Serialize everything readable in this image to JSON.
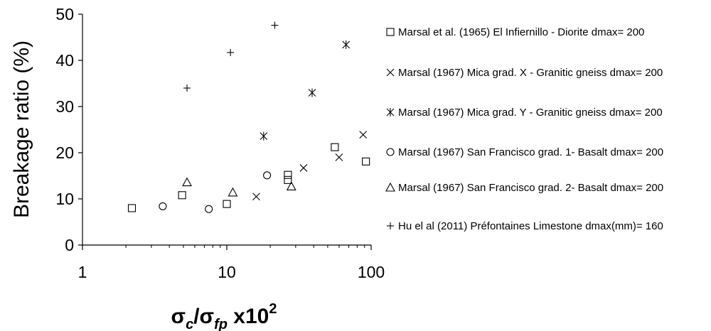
{
  "chart_data": {
    "type": "scatter",
    "x_scale": "log",
    "xlim": [
      1,
      100
    ],
    "ylim": [
      0,
      50
    ],
    "x_ticks": [
      1,
      10,
      100
    ],
    "y_ticks": [
      0,
      10,
      20,
      30,
      40,
      50
    ],
    "ylabel": "Breakage ratio (%)",
    "xlabel": {
      "sigma": "σ",
      "sub1": "c",
      "slash": "/",
      "sub2": "fp",
      "mult": " x10",
      "exp": "2"
    },
    "grid": false,
    "legend_position": "right",
    "series": [
      {
        "name": "Marsal et al. (1965) El Infiernillo - Diorite dmax= 200",
        "marker": "square",
        "points": [
          [
            2.2,
            8.0
          ],
          [
            4.9,
            10.8
          ],
          [
            10.0,
            8.9
          ],
          [
            26.5,
            14.1
          ],
          [
            26.5,
            15.2
          ],
          [
            56.0,
            21.2
          ],
          [
            92.0,
            18.1
          ]
        ]
      },
      {
        "name": "Marsal (1967) Mica grad. X - Granitic gneiss dmax= 200",
        "marker": "x",
        "points": [
          [
            16.0,
            10.5
          ],
          [
            34.0,
            16.7
          ],
          [
            60.0,
            19.0
          ],
          [
            88.0,
            23.9
          ]
        ]
      },
      {
        "name": "Marsal (1967) Mica grad. Y - Granitic gneiss dmax= 200",
        "marker": "asterisk",
        "points": [
          [
            18.0,
            23.6
          ],
          [
            39.0,
            33.0
          ],
          [
            67.0,
            43.4
          ]
        ]
      },
      {
        "name": "Marsal (1967) San Francisco grad. 1- Basalt dmax= 200",
        "marker": "circle",
        "points": [
          [
            3.6,
            8.4
          ],
          [
            7.5,
            7.8
          ],
          [
            19.0,
            15.1
          ]
        ]
      },
      {
        "name": "Marsal (1967) San Francisco grad. 2- Basalt dmax= 200",
        "marker": "triangle",
        "points": [
          [
            5.3,
            13.6
          ],
          [
            11.0,
            11.4
          ],
          [
            28.0,
            12.7
          ]
        ]
      },
      {
        "name": "Hu el al (2011)  Préfontaines Limestone dmax(mm)= 160",
        "marker": "plus",
        "points": [
          [
            5.3,
            34.0
          ],
          [
            10.6,
            41.7
          ],
          [
            21.5,
            47.6
          ]
        ]
      }
    ]
  }
}
